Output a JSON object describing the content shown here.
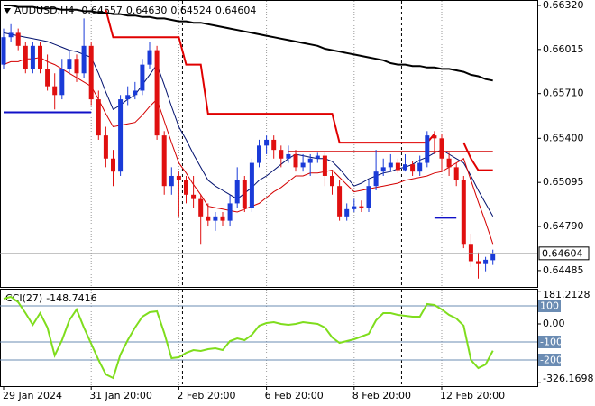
{
  "chart_data": [
    {
      "type": "candlestick",
      "title": "AUDUSD,H4",
      "ohlc_labels": [
        "0.64557",
        "0.64630",
        "0.64524",
        "0.64604"
      ],
      "categories": [
        "29 Jan 2024",
        null,
        null,
        null,
        null,
        null,
        null,
        null,
        null,
        null,
        null,
        null,
        "31 Jan 20:00",
        null,
        null,
        null,
        null,
        null,
        null,
        null,
        null,
        null,
        null,
        null,
        "2 Feb 20:00",
        null,
        null,
        null,
        null,
        null,
        null,
        null,
        null,
        null,
        null,
        null,
        "6 Feb 20:00",
        null,
        null,
        null,
        null,
        null,
        null,
        null,
        null,
        null,
        null,
        null,
        "8 Feb 20:00",
        null,
        null,
        null,
        null,
        null,
        null,
        null,
        null,
        null,
        null,
        null,
        "12 Feb 20:00",
        null,
        null,
        null,
        null,
        null,
        null,
        null
      ],
      "open": [
        0.6591,
        0.661,
        0.6613,
        0.6604,
        0.6588,
        0.6604,
        0.6588,
        0.6576,
        0.657,
        0.6588,
        0.6595,
        0.6585,
        0.6604,
        0.6567,
        0.6542,
        0.6526,
        0.6517,
        0.6567,
        0.657,
        0.6573,
        0.6591,
        0.6601,
        0.6542,
        0.6507,
        0.6514,
        0.6511,
        0.6501,
        0.6498,
        0.6486,
        0.6483,
        0.6486,
        0.6483,
        0.6495,
        0.6511,
        0.6492,
        0.6523,
        0.6535,
        0.6539,
        0.6532,
        0.6526,
        0.6529,
        0.652,
        0.6523,
        0.6526,
        0.6528,
        0.6514,
        0.6507,
        0.6486,
        0.6491,
        0.6493,
        0.6492,
        0.6507,
        0.6517,
        0.652,
        0.6523,
        0.6518,
        0.6522,
        0.6517,
        0.6523,
        0.6542,
        0.654,
        0.6526,
        0.652,
        0.6511,
        0.6467,
        0.6455,
        0.6453,
        0.64557
      ],
      "high": [
        0.6616,
        0.6619,
        0.6616,
        0.6607,
        0.6607,
        0.6607,
        0.6598,
        0.6585,
        0.6595,
        0.6601,
        0.6598,
        0.6623,
        0.6607,
        0.6573,
        0.6548,
        0.6532,
        0.657,
        0.6576,
        0.6579,
        0.6595,
        0.6607,
        0.6604,
        0.6545,
        0.652,
        0.6517,
        0.6514,
        0.6514,
        0.6501,
        0.6495,
        0.6489,
        0.6489,
        0.6501,
        0.652,
        0.6514,
        0.6526,
        0.6539,
        0.6542,
        0.6542,
        0.6535,
        0.6535,
        0.6532,
        0.6529,
        0.6529,
        0.653,
        0.653,
        0.6517,
        0.6511,
        0.6495,
        0.6498,
        0.6497,
        0.6511,
        0.6532,
        0.6526,
        0.6529,
        0.6526,
        0.6529,
        0.6524,
        0.6528,
        0.6545,
        0.6545,
        0.6543,
        0.653,
        0.6523,
        0.6514,
        0.6474,
        0.6461,
        0.6458,
        0.6463
      ],
      "low": [
        0.6588,
        0.6607,
        0.6601,
        0.6585,
        0.6585,
        0.6585,
        0.6573,
        0.656,
        0.6567,
        0.6585,
        0.6579,
        0.6582,
        0.6563,
        0.6539,
        0.652,
        0.6507,
        0.6514,
        0.6563,
        0.6567,
        0.657,
        0.6588,
        0.6539,
        0.6501,
        0.6501,
        0.6486,
        0.6495,
        0.6492,
        0.6467,
        0.6479,
        0.6476,
        0.6479,
        0.6479,
        0.6492,
        0.6489,
        0.6489,
        0.652,
        0.6529,
        0.6526,
        0.652,
        0.6523,
        0.6517,
        0.6517,
        0.6514,
        0.6523,
        0.6507,
        0.6501,
        0.6483,
        0.6483,
        0.6489,
        0.6489,
        0.6489,
        0.6504,
        0.6514,
        0.6517,
        0.6516,
        0.6517,
        0.6514,
        0.6514,
        0.652,
        0.6529,
        0.6517,
        0.6514,
        0.6507,
        0.6464,
        0.6451,
        0.6443,
        0.6448,
        0.64524
      ],
      "close": [
        0.661,
        0.6613,
        0.6604,
        0.6588,
        0.6604,
        0.6588,
        0.6576,
        0.657,
        0.6588,
        0.6595,
        0.6585,
        0.6604,
        0.6567,
        0.6542,
        0.6526,
        0.6517,
        0.6567,
        0.657,
        0.6573,
        0.6591,
        0.6601,
        0.6542,
        0.6507,
        0.6514,
        0.6511,
        0.6501,
        0.6498,
        0.6486,
        0.6483,
        0.6486,
        0.6483,
        0.6495,
        0.6511,
        0.6492,
        0.6523,
        0.6535,
        0.6539,
        0.6532,
        0.6526,
        0.6529,
        0.652,
        0.6523,
        0.6526,
        0.6528,
        0.6514,
        0.6507,
        0.6486,
        0.6491,
        0.6493,
        0.6492,
        0.6507,
        0.6517,
        0.652,
        0.6523,
        0.6518,
        0.6522,
        0.6517,
        0.6523,
        0.6542,
        0.654,
        0.6526,
        0.652,
        0.6511,
        0.6467,
        0.6455,
        0.6453,
        0.6456,
        0.64604
      ],
      "up_color": "#1a3bd8",
      "down_color": "#e01010",
      "series": [
        {
          "color": "#000000",
          "width": 2,
          "values": [
            0.6632,
            0.6632,
            0.6631,
            0.6631,
            0.6631,
            0.663,
            0.663,
            0.663,
            0.6629,
            0.6629,
            0.6629,
            0.6628,
            0.6628,
            0.6627,
            0.6627,
            0.6626,
            0.6626,
            0.6625,
            0.6625,
            0.6624,
            0.6624,
            0.6623,
            0.6623,
            0.6622,
            0.6621,
            0.6621,
            0.662,
            0.662,
            0.6619,
            0.6618,
            0.6617,
            0.6616,
            0.6615,
            0.6614,
            0.6613,
            0.6612,
            0.6611,
            0.661,
            0.6609,
            0.6608,
            0.6607,
            0.6606,
            0.6605,
            0.6604,
            0.6602,
            0.6601,
            0.66,
            0.6599,
            0.6598,
            0.6597,
            0.6596,
            0.6595,
            0.6594,
            0.6592,
            0.6591,
            0.6591,
            0.659,
            0.659,
            0.6589,
            0.6589,
            0.6588,
            0.6588,
            0.6587,
            0.6586,
            0.6584,
            0.6583,
            0.6581,
            0.658
          ]
        },
        {
          "color": "#00106e",
          "width": 1,
          "values": [
            0.6613,
            0.6612,
            0.6611,
            0.661,
            0.6609,
            0.6608,
            0.6607,
            0.6605,
            0.6603,
            0.6601,
            0.66,
            0.6598,
            0.6596,
            0.6585,
            0.6572,
            0.656,
            0.6563,
            0.6567,
            0.657,
            0.6577,
            0.6584,
            0.6591,
            0.6577,
            0.6562,
            0.6548,
            0.6539,
            0.6529,
            0.652,
            0.6511,
            0.6507,
            0.6504,
            0.6501,
            0.6498,
            0.6502,
            0.6506,
            0.6511,
            0.6514,
            0.6518,
            0.6522,
            0.6526,
            0.6529,
            0.6528,
            0.6527,
            0.6526,
            0.6526,
            0.6524,
            0.6519,
            0.6513,
            0.6507,
            0.6509,
            0.6512,
            0.6514,
            0.6516,
            0.6517,
            0.6519,
            0.652,
            0.6522,
            0.6525,
            0.6527,
            0.653,
            0.6532,
            0.6529,
            0.6526,
            0.6523,
            0.6514,
            0.6504,
            0.6495,
            0.6486
          ]
        },
        {
          "color": "#d40000",
          "width": 1,
          "values": [
            0.6591,
            0.6593,
            0.6593,
            0.6595,
            0.6595,
            0.6596,
            0.6593,
            0.6591,
            0.6588,
            0.6585,
            0.6582,
            0.6579,
            0.6576,
            0.6567,
            0.6557,
            0.6548,
            0.6549,
            0.655,
            0.6551,
            0.6556,
            0.6562,
            0.6567,
            0.6552,
            0.6537,
            0.6523,
            0.6516,
            0.6508,
            0.6501,
            0.6493,
            0.6492,
            0.6491,
            0.649,
            0.6489,
            0.6491,
            0.6493,
            0.6495,
            0.6499,
            0.6503,
            0.6506,
            0.651,
            0.6514,
            0.6514,
            0.6516,
            0.6516,
            0.6517,
            0.6518,
            0.6513,
            0.6508,
            0.6503,
            0.6504,
            0.6505,
            0.6506,
            0.6507,
            0.6508,
            0.6509,
            0.6511,
            0.6512,
            0.6513,
            0.6514,
            0.6516,
            0.6517,
            0.652,
            0.6523,
            0.6526,
            0.6511,
            0.6496,
            0.6482,
            0.6467
          ]
        },
        {
          "color": "#e00000",
          "width": 2,
          "values": [
            null,
            null,
            null,
            null,
            null,
            null,
            null,
            null,
            null,
            null,
            null,
            null,
            null,
            null,
            0.6629,
            0.661,
            0.661,
            0.661,
            0.661,
            0.661,
            0.661,
            0.661,
            0.661,
            0.661,
            0.661,
            0.6591,
            0.6591,
            0.6591,
            0.6557,
            0.6557,
            0.6557,
            0.6557,
            0.6557,
            0.6557,
            0.6557,
            0.6557,
            0.6557,
            0.6557,
            0.6557,
            0.6557,
            0.6557,
            0.6557,
            0.6557,
            0.6557,
            0.6557,
            0.6557,
            0.6537,
            0.6537,
            0.6537,
            0.6537,
            0.6537,
            0.6537,
            0.6537,
            0.6537,
            0.6537,
            0.6537,
            0.6537,
            0.6537,
            0.6537,
            0.6543,
            null,
            null,
            null,
            0.6537,
            0.6526,
            0.6518,
            0.6518,
            0.6518
          ]
        },
        {
          "color": "#1010c8",
          "width": 2,
          "values": [
            0.6558,
            0.6558,
            0.6558,
            0.6558,
            0.6558,
            0.6558,
            0.6558,
            0.6558,
            0.6558,
            0.6558,
            0.6558,
            0.6558,
            0.6558,
            null,
            null,
            null,
            null,
            null,
            null,
            null,
            null,
            null,
            null,
            null,
            null,
            null,
            null,
            null,
            null,
            null,
            null,
            null,
            null,
            null,
            null,
            null,
            null,
            null,
            null,
            null,
            null,
            null,
            null,
            null,
            null,
            null,
            null,
            null,
            null,
            null,
            null,
            null,
            null,
            null,
            null,
            null,
            null,
            null,
            null,
            0.6485,
            0.6485,
            0.6485,
            0.6485,
            null,
            null,
            null,
            null,
            null
          ]
        },
        {
          "color": "#d40000",
          "width": 1,
          "values": [
            null,
            null,
            null,
            null,
            null,
            null,
            null,
            null,
            null,
            null,
            null,
            null,
            null,
            null,
            null,
            null,
            null,
            null,
            null,
            null,
            null,
            null,
            null,
            null,
            null,
            null,
            null,
            null,
            null,
            null,
            null,
            null,
            null,
            null,
            null,
            null,
            null,
            null,
            null,
            0.6531,
            0.6531,
            0.6531,
            0.6531,
            0.6531,
            0.6531,
            0.6531,
            0.6531,
            0.6531,
            0.6531,
            0.6531,
            0.6531,
            0.6531,
            0.6531,
            0.6531,
            0.6531,
            0.6531,
            0.6531,
            0.6531,
            0.6531,
            0.6531,
            0.6531,
            0.6531,
            0.6531,
            0.6531,
            0.6531,
            0.6531,
            0.6531,
            0.6531
          ]
        }
      ],
      "period_separators": [
        24,
        54
      ],
      "ylim": [
        0.64372,
        0.66351
      ],
      "yticks": [
        {
          "value": 0.6632,
          "label": "0.66320"
        },
        0.66015,
        {
          "value": 0.6571,
          "label": "0.65710"
        },
        {
          "value": 0.654,
          "label": "0.65400"
        },
        0.65095,
        {
          "value": 0.6479,
          "label": "0.64790"
        },
        0.64485
      ],
      "grid": true
    },
    {
      "type": "line",
      "title": "CCI(27)",
      "series": [
        {
          "color": "#7fdd1d",
          "values": [
            140,
            150,
            120,
            60,
            -5,
            60,
            -20,
            -175,
            -90,
            20,
            80,
            -20,
            -110,
            -200,
            -280,
            -300,
            -170,
            -90,
            -20,
            40,
            65,
            70,
            -50,
            -190,
            -185,
            -160,
            -145,
            -150,
            -140,
            -135,
            -145,
            -95,
            -80,
            -90,
            -60,
            -10,
            5,
            10,
            0,
            -5,
            0,
            10,
            5,
            0,
            -20,
            -75,
            -105,
            -95,
            -85,
            -70,
            -55,
            20,
            60,
            60,
            50,
            45,
            40,
            40,
            110,
            105,
            80,
            50,
            30,
            -10,
            -200,
            -245,
            -225,
            -148.7416
          ]
        }
      ],
      "ylim": [
        -345,
        190
      ],
      "yticks": [
        181.2128,
        {
          "value": 0,
          "label": "0.00"
        },
        -326.1698
      ],
      "levels": [
        100,
        -100,
        -200
      ],
      "level_color": "#6b8cb3"
    }
  ]
}
